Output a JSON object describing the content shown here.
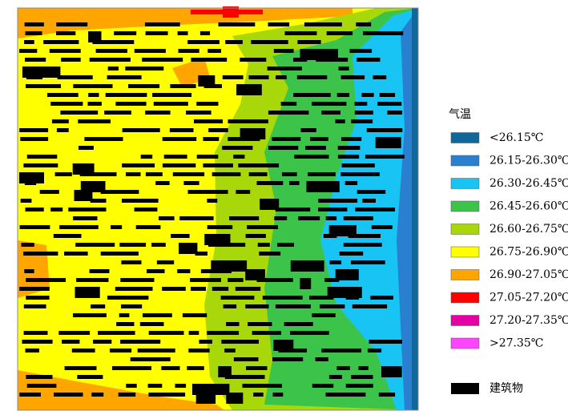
{
  "legend": {
    "title": "气温",
    "items": [
      {
        "label": "<26.15℃",
        "color": "#10689a"
      },
      {
        "label": "26.15-26.30℃",
        "color": "#2a7fd0"
      },
      {
        "label": "26.30-26.45℃",
        "color": "#18c4f4"
      },
      {
        "label": "26.45-26.60℃",
        "color": "#3cc44a"
      },
      {
        "label": "26.60-26.75℃",
        "color": "#a8d80a"
      },
      {
        "label": "26.75-26.90℃",
        "color": "#ffff00"
      },
      {
        "label": "26.90-27.05℃",
        "color": "#ffa500"
      },
      {
        "label": "27.05-27.20℃",
        "color": "#ff0000"
      },
      {
        "label": "27.20-27.35℃",
        "color": "#e400a4"
      },
      {
        "label": ">27.35℃",
        "color": "#ff44ff"
      }
    ],
    "building": {
      "label": "建筑物",
      "color": "#000000"
    }
  }
}
